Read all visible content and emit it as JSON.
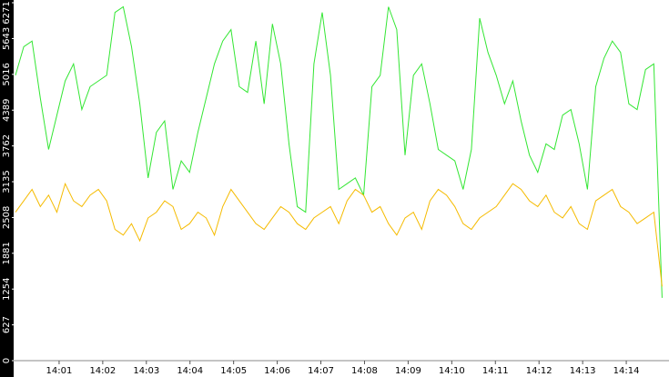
{
  "chart_data": {
    "type": "line",
    "x": [
      0,
      0.19,
      0.38,
      0.57,
      0.76,
      0.95,
      1.14,
      1.33,
      1.52,
      1.71,
      1.9,
      2.09,
      2.28,
      2.47,
      2.66,
      2.85,
      3.04,
      3.23,
      3.42,
      3.61,
      3.8,
      3.99,
      4.18,
      4.37,
      4.56,
      4.75,
      4.94,
      5.13,
      5.32,
      5.51,
      5.7,
      5.89,
      6.08,
      6.27,
      6.46,
      6.65,
      6.84,
      7.03,
      7.22,
      7.41,
      7.6,
      7.79,
      7.98,
      8.17,
      8.36,
      8.55,
      8.74,
      8.93,
      9.12,
      9.31,
      9.5,
      9.69,
      9.88,
      10.07,
      10.26,
      10.45,
      10.64,
      10.83,
      11.02,
      11.21,
      11.4,
      11.59,
      11.78,
      11.97,
      12.16,
      12.35,
      12.54,
      12.73,
      12.92,
      13.11,
      13.3,
      13.49,
      13.68,
      13.87,
      14.06,
      14.25,
      14.44,
      14.63,
      14.82
    ],
    "series": [
      {
        "color": "#33e633",
        "values": [
          5000,
          5500,
          5600,
          4600,
          3700,
          4300,
          4900,
          5200,
          4400,
          4800,
          4900,
          5000,
          6100,
          6200,
          5500,
          4500,
          3200,
          4000,
          4200,
          3000,
          3500,
          3300,
          4000,
          4600,
          5200,
          5600,
          5800,
          4800,
          4700,
          5600,
          4500,
          5900,
          5200,
          3800,
          2700,
          2600,
          5200,
          6100,
          5000,
          3000,
          3100,
          3200,
          2900,
          4800,
          5000,
          6200,
          5800,
          3600,
          5000,
          5200,
          4500,
          3700,
          3600,
          3500,
          3000,
          3700,
          6000,
          5400,
          5000,
          4500,
          4900,
          4200,
          3600,
          3300,
          3800,
          3700,
          4300,
          4400,
          3800,
          3000,
          4800,
          5300,
          5600,
          5400,
          4500,
          4400,
          5100,
          5200,
          1100
        ]
      },
      {
        "color": "#f5bb00",
        "values": [
          2600,
          2800,
          3000,
          2700,
          2900,
          2600,
          3100,
          2800,
          2700,
          2900,
          3000,
          2800,
          2300,
          2200,
          2400,
          2100,
          2500,
          2600,
          2800,
          2700,
          2300,
          2400,
          2600,
          2500,
          2200,
          2700,
          3000,
          2800,
          2600,
          2400,
          2300,
          2500,
          2700,
          2600,
          2400,
          2300,
          2500,
          2600,
          2700,
          2400,
          2800,
          3000,
          2900,
          2600,
          2700,
          2400,
          2200,
          2500,
          2600,
          2300,
          2800,
          3000,
          2900,
          2700,
          2400,
          2300,
          2500,
          2600,
          2700,
          2900,
          3100,
          3000,
          2800,
          2700,
          2900,
          2600,
          2500,
          2700,
          2400,
          2300,
          2800,
          2900,
          3000,
          2700,
          2600,
          2400,
          2500,
          2600,
          1300
        ]
      }
    ],
    "xlim": [
      0,
      15
    ],
    "xticks": [
      {
        "value": 1,
        "label": "14:01"
      },
      {
        "value": 2,
        "label": "14:02"
      },
      {
        "value": 3,
        "label": "14:03"
      },
      {
        "value": 4,
        "label": "14:04"
      },
      {
        "value": 5,
        "label": "14:05"
      },
      {
        "value": 6,
        "label": "14:06"
      },
      {
        "value": 7,
        "label": "14:07"
      },
      {
        "value": 8,
        "label": "14:08"
      },
      {
        "value": 9,
        "label": "14:09"
      },
      {
        "value": 10,
        "label": "14:10"
      },
      {
        "value": 11,
        "label": "14:11"
      },
      {
        "value": 12,
        "label": "14:12"
      },
      {
        "value": 13,
        "label": "14:13"
      },
      {
        "value": 14,
        "label": "14:14"
      }
    ],
    "ylim": [
      0,
      6271
    ],
    "yticks": [
      0,
      627,
      1254,
      1881,
      2508,
      3135,
      3762,
      4389,
      5016,
      5643,
      6271
    ],
    "grid": false
  }
}
